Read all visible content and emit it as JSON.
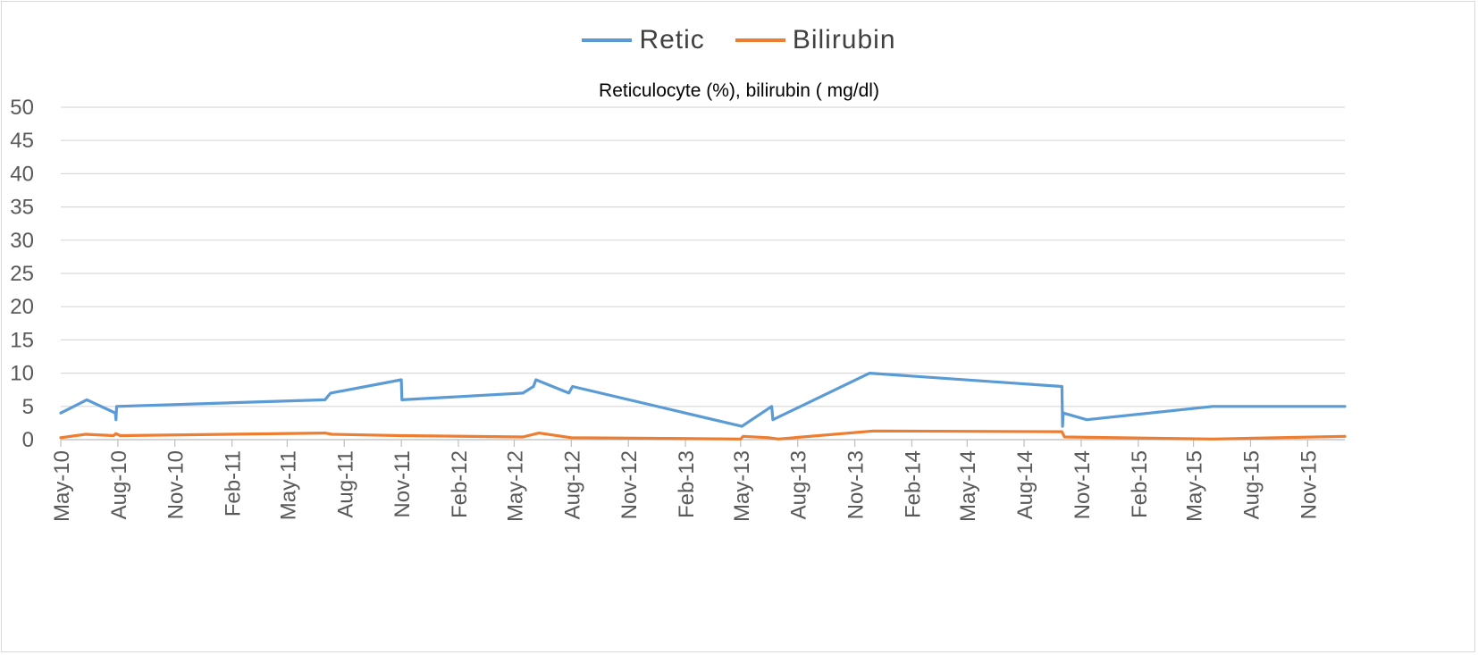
{
  "chart_data": {
    "type": "line",
    "title": "Reticulocyte (%), bilirubin ( mg/dl)",
    "xlabel": "",
    "ylabel": "",
    "ylim": [
      0,
      50
    ],
    "yticks": [
      0,
      5,
      10,
      15,
      20,
      25,
      30,
      35,
      40,
      45,
      50
    ],
    "xlim": [
      "2010-05-01",
      "2015-12-31"
    ],
    "xticks": [
      {
        "label": "May-10",
        "date": "2010-05-01"
      },
      {
        "label": "Aug-10",
        "date": "2010-08-01"
      },
      {
        "label": "Nov-10",
        "date": "2010-11-01"
      },
      {
        "label": "Feb-11",
        "date": "2011-02-01"
      },
      {
        "label": "May-11",
        "date": "2011-05-01"
      },
      {
        "label": "Aug-11",
        "date": "2011-08-01"
      },
      {
        "label": "Nov-11",
        "date": "2011-11-01"
      },
      {
        "label": "Feb-12",
        "date": "2012-02-01"
      },
      {
        "label": "May-12",
        "date": "2012-05-01"
      },
      {
        "label": "Aug-12",
        "date": "2012-08-01"
      },
      {
        "label": "Nov-12",
        "date": "2012-11-01"
      },
      {
        "label": "Feb-13",
        "date": "2013-02-01"
      },
      {
        "label": "May-13",
        "date": "2013-05-01"
      },
      {
        "label": "Aug-13",
        "date": "2013-08-01"
      },
      {
        "label": "Nov-13",
        "date": "2013-11-01"
      },
      {
        "label": "Feb-14",
        "date": "2014-02-01"
      },
      {
        "label": "May-14",
        "date": "2014-05-01"
      },
      {
        "label": "Aug-14",
        "date": "2014-08-01"
      },
      {
        "label": "Nov-14",
        "date": "2014-11-01"
      },
      {
        "label": "Feb-15",
        "date": "2015-02-01"
      },
      {
        "label": "May-15",
        "date": "2015-05-01"
      },
      {
        "label": "Aug-15",
        "date": "2015-08-01"
      },
      {
        "label": "Nov-15",
        "date": "2015-11-01"
      }
    ],
    "grid": true,
    "legend_position": "top",
    "series": [
      {
        "name": "Retic",
        "color": "#5b9bd5",
        "points": [
          [
            "2010-05-01",
            4
          ],
          [
            "2010-06-12",
            6
          ],
          [
            "2010-07-28",
            4
          ],
          [
            "2010-07-29",
            3
          ],
          [
            "2010-07-30",
            5
          ],
          [
            "2011-07-01",
            6
          ],
          [
            "2011-07-10",
            7
          ],
          [
            "2011-11-01",
            9
          ],
          [
            "2011-11-02",
            6
          ],
          [
            "2012-05-15",
            7
          ],
          [
            "2012-06-01",
            8
          ],
          [
            "2012-06-05",
            9
          ],
          [
            "2012-07-28",
            7
          ],
          [
            "2012-08-03",
            8
          ],
          [
            "2013-05-03",
            2
          ],
          [
            "2013-06-20",
            5
          ],
          [
            "2013-06-22",
            3
          ],
          [
            "2013-11-25",
            10
          ],
          [
            "2014-10-01",
            8
          ],
          [
            "2014-10-02",
            2
          ],
          [
            "2014-10-03",
            4
          ],
          [
            "2014-11-10",
            3
          ],
          [
            "2015-06-01",
            5
          ],
          [
            "2015-12-31",
            5
          ]
        ]
      },
      {
        "name": "Bilirubin",
        "color": "#ed7d31",
        "points": [
          [
            "2010-05-01",
            0.3
          ],
          [
            "2010-06-10",
            0.8
          ],
          [
            "2010-07-25",
            0.6
          ],
          [
            "2010-07-29",
            0.9
          ],
          [
            "2010-08-05",
            0.6
          ],
          [
            "2011-07-01",
            1
          ],
          [
            "2011-07-12",
            0.8
          ],
          [
            "2011-11-01",
            0.6
          ],
          [
            "2012-05-15",
            0.4
          ],
          [
            "2012-06-10",
            1
          ],
          [
            "2012-08-01",
            0.3
          ],
          [
            "2013-05-01",
            0.1
          ],
          [
            "2013-05-05",
            0.5
          ],
          [
            "2013-06-15",
            0.3
          ],
          [
            "2013-07-01",
            0.1
          ],
          [
            "2013-12-01",
            1.3
          ],
          [
            "2014-10-01",
            1.2
          ],
          [
            "2014-10-05",
            0.4
          ],
          [
            "2015-06-01",
            0.1
          ],
          [
            "2015-12-31",
            0.5
          ]
        ]
      }
    ]
  }
}
